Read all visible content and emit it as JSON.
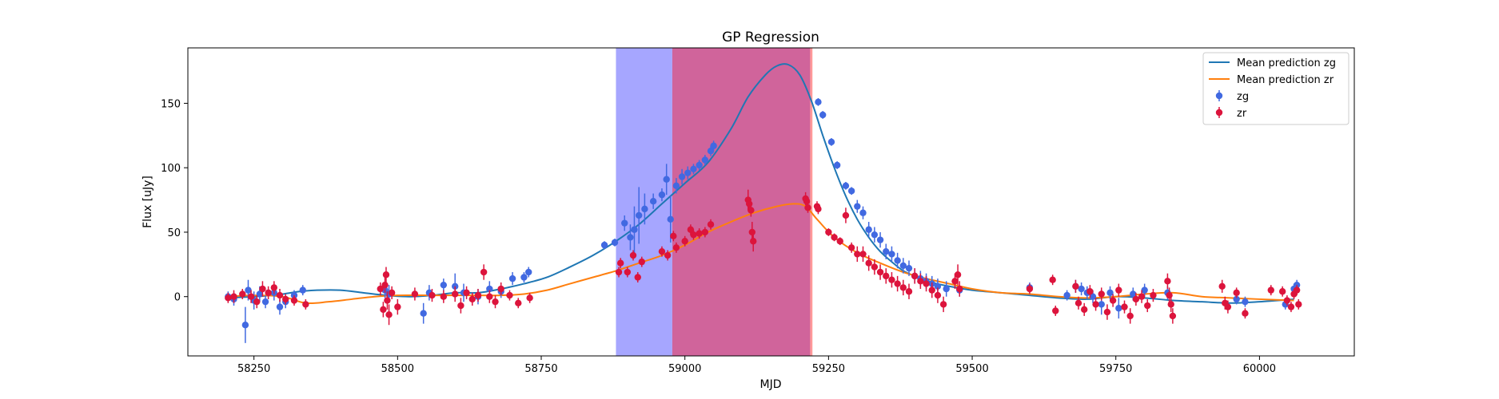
{
  "chart_data": {
    "type": "scatter",
    "title": "GP Regression",
    "xlabel": "MJD",
    "ylabel": "Flux [uJy]",
    "xlim": [
      58135,
      60165
    ],
    "ylim": [
      -46,
      193
    ],
    "xticks": [
      58250,
      58500,
      58750,
      59000,
      59250,
      59500,
      59750,
      60000
    ],
    "yticks": [
      0,
      50,
      100,
      150
    ],
    "grid": false,
    "legend_position": "top-right",
    "shaded_regions": [
      {
        "x": [
          58880,
          58978
        ],
        "color": "#0000ff",
        "opacity": 0.35
      },
      {
        "x": [
          58978,
          59218
        ],
        "color": "#c0307a",
        "opacity": 0.75
      },
      {
        "x": [
          59218,
          59222
        ],
        "color": "#ff0000",
        "opacity": 0.4
      }
    ],
    "series": [
      {
        "name": "Mean prediction zg",
        "kind": "line",
        "color": "#1f77b4",
        "x": [
          58200,
          58250,
          58280,
          58300,
          58330,
          58360,
          58400,
          58440,
          58480,
          58520,
          58560,
          58600,
          58640,
          58680,
          58720,
          58760,
          58800,
          58840,
          58880,
          58920,
          58960,
          59000,
          59040,
          59080,
          59110,
          59140,
          59160,
          59180,
          59200,
          59220,
          59240,
          59260,
          59280,
          59300,
          59320,
          59340,
          59360,
          59380,
          59400,
          59430,
          59460,
          59500,
          59550,
          59600,
          59650,
          59700,
          59750,
          59800,
          59850,
          59900,
          59950,
          60000,
          60060
        ],
        "y": [
          -1,
          0,
          1,
          2,
          4,
          5,
          5,
          3,
          1,
          0,
          1,
          3,
          3,
          6,
          10,
          15,
          23,
          32,
          43,
          56,
          72,
          88,
          104,
          130,
          155,
          172,
          179,
          180,
          172,
          152,
          125,
          100,
          78,
          60,
          46,
          35,
          27,
          20,
          16,
          11,
          8,
          5,
          3,
          1,
          -1,
          -2,
          0,
          -1,
          -3,
          -4,
          -5,
          -4,
          -2
        ]
      },
      {
        "name": "Mean prediction zr",
        "kind": "line",
        "color": "#ff7f0e",
        "x": [
          58200,
          58250,
          58300,
          58340,
          58380,
          58420,
          58460,
          58500,
          58560,
          58620,
          58680,
          58720,
          58760,
          58800,
          58840,
          58880,
          58920,
          58960,
          59000,
          59040,
          59080,
          59120,
          59160,
          59190,
          59210,
          59230,
          59260,
          59300,
          59340,
          59380,
          59420,
          59460,
          59500,
          59550,
          59600,
          59650,
          59700,
          59750,
          59800,
          59850,
          59900,
          59950,
          60000,
          60060
        ],
        "y": [
          0,
          1,
          0,
          -5,
          -4,
          -2,
          0,
          1,
          1,
          1,
          1,
          2,
          5,
          10,
          15,
          20,
          26,
          32,
          40,
          50,
          58,
          65,
          70,
          72,
          70,
          60,
          46,
          34,
          26,
          19,
          14,
          10,
          6,
          3,
          2,
          0,
          -1,
          0,
          2,
          3,
          0,
          -1,
          -2,
          -3
        ]
      },
      {
        "name": "zg",
        "kind": "errorbar",
        "color": "#4169e1",
        "points": [
          [
            58205,
            0,
            4
          ],
          [
            58215,
            -2,
            5
          ],
          [
            58235,
            -22,
            14
          ],
          [
            58240,
            5,
            8
          ],
          [
            58250,
            -3,
            7
          ],
          [
            58260,
            2,
            6
          ],
          [
            58270,
            -4,
            5
          ],
          [
            58285,
            3,
            6
          ],
          [
            58295,
            -8,
            6
          ],
          [
            58305,
            -4,
            5
          ],
          [
            58320,
            1,
            4
          ],
          [
            58335,
            5,
            4
          ],
          [
            58478,
            5,
            6
          ],
          [
            58485,
            2,
            7
          ],
          [
            58545,
            -13,
            8
          ],
          [
            58555,
            3,
            6
          ],
          [
            58580,
            9,
            5
          ],
          [
            58600,
            8,
            10
          ],
          [
            58615,
            3,
            7
          ],
          [
            58640,
            0,
            6
          ],
          [
            58660,
            6,
            6
          ],
          [
            58680,
            4,
            5
          ],
          [
            58700,
            14,
            5
          ],
          [
            58720,
            15,
            4
          ],
          [
            58728,
            19,
            4
          ],
          [
            58860,
            40,
            3
          ],
          [
            58878,
            42,
            3
          ],
          [
            58895,
            57,
            6
          ],
          [
            58905,
            46,
            10
          ],
          [
            58912,
            52,
            18
          ],
          [
            58920,
            63,
            22
          ],
          [
            58930,
            68,
            12
          ],
          [
            58945,
            74,
            6
          ],
          [
            58960,
            79,
            5
          ],
          [
            58968,
            91,
            12
          ],
          [
            58975,
            60,
            18
          ],
          [
            58985,
            86,
            6
          ],
          [
            58995,
            93,
            6
          ],
          [
            59005,
            96,
            5
          ],
          [
            59015,
            99,
            4
          ],
          [
            59025,
            102,
            4
          ],
          [
            59035,
            106,
            4
          ],
          [
            59045,
            113,
            4
          ],
          [
            59050,
            117,
            4
          ],
          [
            59232,
            151,
            3
          ],
          [
            59240,
            141,
            3
          ],
          [
            59255,
            120,
            3
          ],
          [
            59265,
            102,
            3
          ],
          [
            59280,
            86,
            3
          ],
          [
            59290,
            82,
            3
          ],
          [
            59300,
            70,
            5
          ],
          [
            59310,
            65,
            5
          ],
          [
            59320,
            52,
            6
          ],
          [
            59330,
            48,
            6
          ],
          [
            59340,
            44,
            6
          ],
          [
            59350,
            35,
            6
          ],
          [
            59360,
            33,
            6
          ],
          [
            59370,
            28,
            6
          ],
          [
            59380,
            24,
            6
          ],
          [
            59390,
            22,
            6
          ],
          [
            59400,
            16,
            6
          ],
          [
            59410,
            14,
            6
          ],
          [
            59420,
            12,
            6
          ],
          [
            59430,
            10,
            6
          ],
          [
            59440,
            8,
            6
          ],
          [
            59455,
            6,
            6
          ],
          [
            59478,
            5,
            5
          ],
          [
            59600,
            7,
            4
          ],
          [
            59665,
            1,
            4
          ],
          [
            59680,
            8,
            5
          ],
          [
            59690,
            6,
            5
          ],
          [
            59700,
            3,
            5
          ],
          [
            59710,
            0,
            5
          ],
          [
            59725,
            -6,
            8
          ],
          [
            59740,
            3,
            5
          ],
          [
            59755,
            -9,
            8
          ],
          [
            59780,
            2,
            5
          ],
          [
            59800,
            5,
            5
          ],
          [
            59840,
            3,
            5
          ],
          [
            59960,
            -2,
            4
          ],
          [
            59975,
            -4,
            4
          ],
          [
            60045,
            -6,
            4
          ],
          [
            60060,
            6,
            4
          ],
          [
            60065,
            9,
            4
          ]
        ]
      },
      {
        "name": "zr",
        "kind": "errorbar",
        "color": "#dc143c",
        "points": [
          [
            58205,
            -1,
            4
          ],
          [
            58215,
            0,
            5
          ],
          [
            58230,
            2,
            4
          ],
          [
            58245,
            0,
            5
          ],
          [
            58255,
            -4,
            5
          ],
          [
            58265,
            6,
            6
          ],
          [
            58275,
            3,
            5
          ],
          [
            58285,
            7,
            5
          ],
          [
            58295,
            1,
            5
          ],
          [
            58305,
            -2,
            4
          ],
          [
            58320,
            -3,
            4
          ],
          [
            58340,
            -6,
            4
          ],
          [
            58470,
            6,
            5
          ],
          [
            58475,
            -10,
            6
          ],
          [
            58478,
            9,
            6
          ],
          [
            58480,
            17,
            6
          ],
          [
            58482,
            -3,
            7
          ],
          [
            58485,
            -14,
            8
          ],
          [
            58490,
            3,
            5
          ],
          [
            58500,
            -8,
            6
          ],
          [
            58530,
            2,
            5
          ],
          [
            58560,
            1,
            5
          ],
          [
            58580,
            0,
            5
          ],
          [
            58600,
            2,
            6
          ],
          [
            58610,
            -7,
            6
          ],
          [
            58620,
            3,
            5
          ],
          [
            58630,
            -2,
            5
          ],
          [
            58640,
            1,
            5
          ],
          [
            58650,
            19,
            6
          ],
          [
            58660,
            0,
            5
          ],
          [
            58670,
            -4,
            5
          ],
          [
            58680,
            6,
            5
          ],
          [
            58695,
            1,
            4
          ],
          [
            58710,
            -5,
            4
          ],
          [
            58730,
            -1,
            4
          ],
          [
            58885,
            19,
            4
          ],
          [
            58888,
            26,
            4
          ],
          [
            58900,
            19,
            4
          ],
          [
            58910,
            32,
            4
          ],
          [
            58918,
            15,
            4
          ],
          [
            58925,
            27,
            4
          ],
          [
            58960,
            35,
            4
          ],
          [
            58970,
            32,
            4
          ],
          [
            58980,
            47,
            4
          ],
          [
            58985,
            38,
            4
          ],
          [
            59000,
            43,
            4
          ],
          [
            59010,
            52,
            4
          ],
          [
            59015,
            48,
            4
          ],
          [
            59025,
            49,
            4
          ],
          [
            59035,
            50,
            4
          ],
          [
            59045,
            56,
            4
          ],
          [
            59110,
            75,
            8
          ],
          [
            59112,
            72,
            5
          ],
          [
            59115,
            67,
            5
          ],
          [
            59117,
            50,
            8
          ],
          [
            59119,
            43,
            8
          ],
          [
            59210,
            76,
            5
          ],
          [
            59212,
            74,
            4
          ],
          [
            59214,
            69,
            4
          ],
          [
            59230,
            70,
            4
          ],
          [
            59232,
            68,
            4
          ],
          [
            59250,
            50,
            3
          ],
          [
            59260,
            46,
            3
          ],
          [
            59270,
            43,
            3
          ],
          [
            59280,
            63,
            6
          ],
          [
            59290,
            38,
            4
          ],
          [
            59300,
            33,
            6
          ],
          [
            59310,
            33,
            6
          ],
          [
            59320,
            26,
            6
          ],
          [
            59330,
            23,
            6
          ],
          [
            59340,
            19,
            6
          ],
          [
            59350,
            16,
            6
          ],
          [
            59360,
            13,
            6
          ],
          [
            59370,
            10,
            6
          ],
          [
            59380,
            7,
            6
          ],
          [
            59390,
            4,
            6
          ],
          [
            59400,
            16,
            6
          ],
          [
            59410,
            12,
            6
          ],
          [
            59420,
            10,
            6
          ],
          [
            59430,
            5,
            6
          ],
          [
            59440,
            1,
            6
          ],
          [
            59450,
            -6,
            6
          ],
          [
            59470,
            12,
            6
          ],
          [
            59475,
            17,
            8
          ],
          [
            59478,
            6,
            6
          ],
          [
            59600,
            6,
            4
          ],
          [
            59640,
            13,
            4
          ],
          [
            59645,
            -11,
            4
          ],
          [
            59680,
            8,
            5
          ],
          [
            59685,
            -5,
            5
          ],
          [
            59695,
            -10,
            5
          ],
          [
            59705,
            4,
            5
          ],
          [
            59715,
            -6,
            5
          ],
          [
            59725,
            2,
            5
          ],
          [
            59735,
            -12,
            6
          ],
          [
            59745,
            -3,
            5
          ],
          [
            59755,
            5,
            5
          ],
          [
            59765,
            -8,
            5
          ],
          [
            59775,
            -15,
            6
          ],
          [
            59785,
            -2,
            5
          ],
          [
            59795,
            0,
            5
          ],
          [
            59805,
            -7,
            5
          ],
          [
            59815,
            1,
            5
          ],
          [
            59840,
            12,
            6
          ],
          [
            59843,
            1,
            6
          ],
          [
            59846,
            -6,
            6
          ],
          [
            59849,
            -15,
            6
          ],
          [
            59935,
            8,
            5
          ],
          [
            59940,
            -5,
            5
          ],
          [
            59945,
            -8,
            5
          ],
          [
            59960,
            3,
            4
          ],
          [
            59975,
            -13,
            4
          ],
          [
            60020,
            5,
            4
          ],
          [
            60040,
            4,
            4
          ],
          [
            60048,
            -3,
            4
          ],
          [
            60055,
            -8,
            4
          ],
          [
            60060,
            2,
            4
          ],
          [
            60065,
            5,
            4
          ],
          [
            60068,
            -6,
            4
          ]
        ]
      }
    ]
  }
}
